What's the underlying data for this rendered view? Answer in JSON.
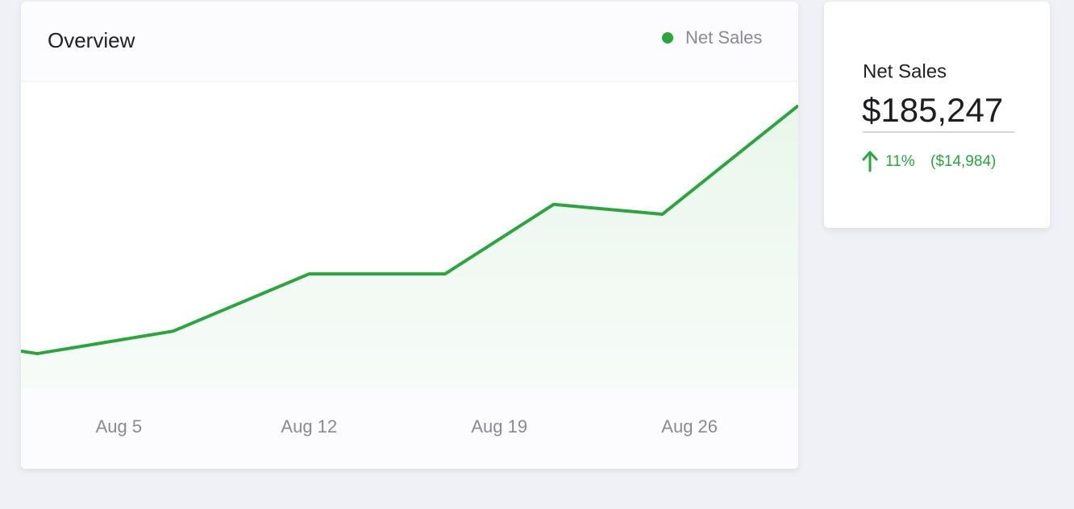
{
  "chart_data": {
    "type": "line",
    "title": "Overview",
    "x": [
      1.4,
      2,
      7,
      12,
      17,
      21,
      25,
      30
    ],
    "series": [
      {
        "name": "Net Sales",
        "color": "#2aa63f",
        "values": [
          12.3,
          11.5,
          18.8,
          37.4,
          37.4,
          60,
          56.8,
          92.1
        ]
      }
    ],
    "xlim": [
      1.4,
      30
    ],
    "xticks": [
      {
        "value": 5,
        "label": "Aug 5"
      },
      {
        "value": 12,
        "label": "Aug 12"
      },
      {
        "value": 19,
        "label": "Aug 19"
      },
      {
        "value": 26,
        "label": "Aug 26"
      }
    ],
    "ylim": [
      0,
      100
    ],
    "grid": false,
    "legend": "top-right"
  },
  "kpi": {
    "title": "Net Sales",
    "value": "$185,247",
    "change_percent": "11%",
    "change_amount": "($14,984)"
  }
}
